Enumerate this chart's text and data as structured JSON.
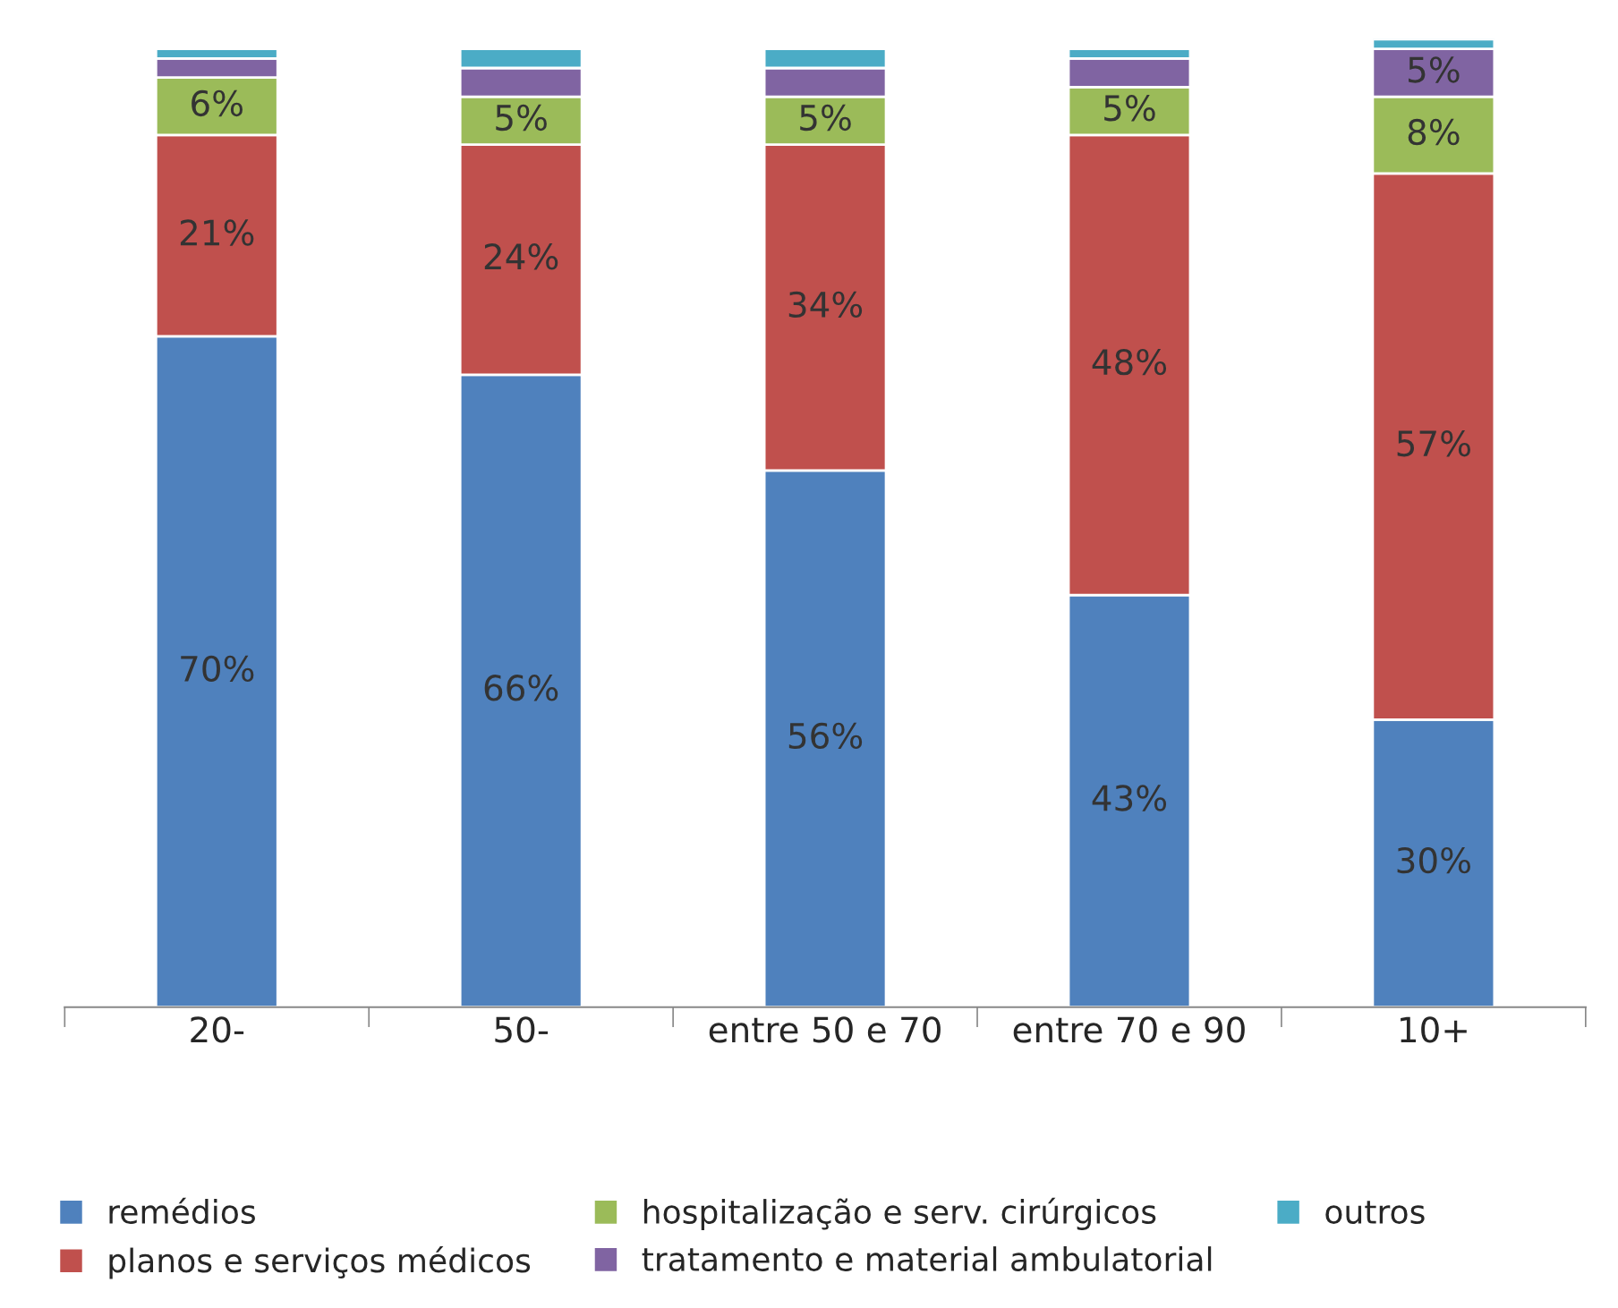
{
  "chart_data": {
    "type": "bar",
    "stacked": true,
    "categories": [
      "20-",
      "50-",
      "entre 50 e 70",
      "entre 70 e 90",
      "10+"
    ],
    "series": [
      {
        "name": "remédios",
        "color": "#4f81bd",
        "values": [
          70,
          66,
          56,
          43,
          30
        ],
        "value_labels": [
          "70%",
          "66%",
          "56%",
          "43%",
          "30%"
        ]
      },
      {
        "name": "planos e serviços médicos",
        "color": "#c0504d",
        "values": [
          21,
          24,
          34,
          48,
          57
        ],
        "value_labels": [
          "21%",
          "24%",
          "34%",
          "48%",
          "57%"
        ]
      },
      {
        "name": "hospitalização e serv. cirúrgicos",
        "color": "#9bbb59",
        "values": [
          6,
          5,
          5,
          5,
          8
        ],
        "value_labels": [
          "6%",
          "5%",
          "5%",
          "5%",
          "8%"
        ]
      },
      {
        "name": "tratamento e material ambulatorial",
        "color": "#8064a2",
        "values": [
          2,
          3,
          3,
          3,
          5
        ],
        "value_labels": [
          null,
          null,
          null,
          null,
          "5%"
        ]
      },
      {
        "name": "outros",
        "color": "#4bacc6",
        "values": [
          1,
          2,
          2,
          1,
          1
        ]
      }
    ],
    "legend": "bottom",
    "grid": false
  }
}
